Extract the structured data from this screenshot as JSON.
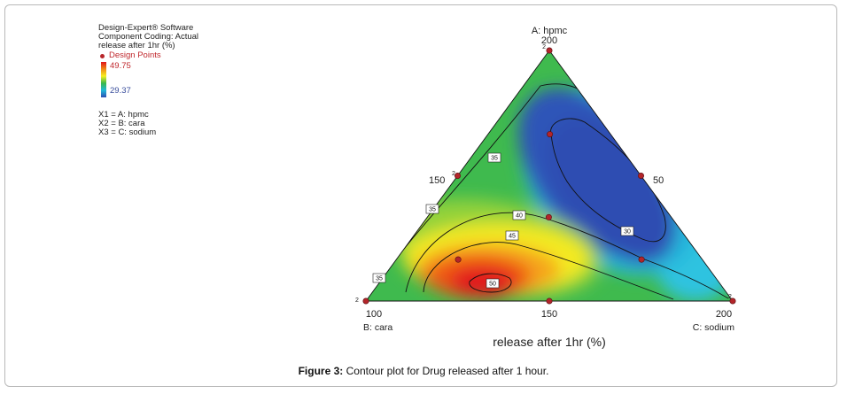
{
  "legend": {
    "software": "Design-Expert® Software",
    "coding": "Component Coding: Actual",
    "response_line1": "release after 1hr (%)",
    "design_points": "Design Points",
    "scale_max": "49.75",
    "scale_min": "29.37",
    "x1": "X1 = A: hpmc",
    "x2": "X2 = B: cara",
    "x3": "X3 = C: sodium"
  },
  "caption": {
    "label": "Figure 3:",
    "text": " Contour plot for Drug released after 1 hour."
  },
  "chart_data": {
    "type": "ternary-contour",
    "xlabel": "release after 1hr (%)",
    "components": {
      "A": {
        "name": "A: hpmc",
        "min": 50,
        "max": 200
      },
      "B": {
        "name": "B: cara",
        "min": 100,
        "max": 200
      },
      "C": {
        "name": "C: sodium",
        "min": 150,
        "max": 200
      }
    },
    "tick_labels": {
      "top_vertex": "200",
      "left_edge": "150",
      "right_edge": "50",
      "bottom_left": "100",
      "bottom_mid": "150",
      "bottom_right": "200"
    },
    "vertex_labels": {
      "top": "A: hpmc",
      "bottom_left": "B: cara",
      "bottom_right": "C: sodium"
    },
    "replicate_labels": [
      "2",
      "2",
      "2",
      "2"
    ],
    "colorscale": {
      "min": 29.37,
      "max": 49.75,
      "colors": [
        "#2d4eb3",
        "#21b9d9",
        "#3ab84a",
        "#f6ee20",
        "#f08a16",
        "#e0141a"
      ]
    },
    "contour_labels": [
      "35",
      "35",
      "35",
      "40",
      "45",
      "50",
      "30"
    ],
    "design_points": [
      {
        "a": 1.0,
        "b": 0.0,
        "c": 0.0
      },
      {
        "a": 0.0,
        "b": 1.0,
        "c": 0.0
      },
      {
        "a": 0.0,
        "b": 0.0,
        "c": 1.0
      },
      {
        "a": 0.5,
        "b": 0.5,
        "c": 0.0
      },
      {
        "a": 0.5,
        "b": 0.0,
        "c": 0.5
      },
      {
        "a": 0.0,
        "b": 0.5,
        "c": 0.5
      },
      {
        "a": 0.667,
        "b": 0.167,
        "c": 0.167
      },
      {
        "a": 0.167,
        "b": 0.667,
        "c": 0.167
      },
      {
        "a": 0.167,
        "b": 0.167,
        "c": 0.667
      },
      {
        "a": 0.333,
        "b": 0.333,
        "c": 0.333
      }
    ]
  }
}
